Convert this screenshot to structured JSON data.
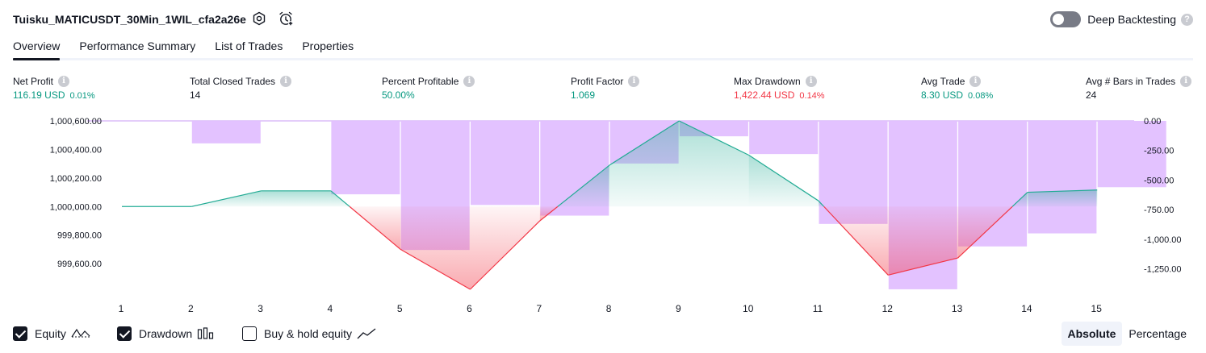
{
  "header": {
    "title": "Tuisku_MATICUSDT_30Min_1WIL_cfa2a26e",
    "settings_icon": "gear-icon",
    "alert_icon": "alarm-clock-plus-icon",
    "deep_backtesting_label": "Deep Backtesting",
    "deep_backtesting_enabled": false,
    "help_glyph": "?"
  },
  "tabs": [
    {
      "label": "Overview",
      "active": true
    },
    {
      "label": "Performance Summary",
      "active": false
    },
    {
      "label": "List of Trades",
      "active": false
    },
    {
      "label": "Properties",
      "active": false
    }
  ],
  "metrics": [
    {
      "label": "Net Profit",
      "value": "116.19 USD",
      "pct": "0.01%",
      "color": "#089981"
    },
    {
      "label": "Total Closed Trades",
      "value": "14",
      "pct": "",
      "color": "#131722"
    },
    {
      "label": "Percent Profitable",
      "value": "50.00%",
      "pct": "",
      "color": "#089981"
    },
    {
      "label": "Profit Factor",
      "value": "1.069",
      "pct": "",
      "color": "#089981"
    },
    {
      "label": "Max Drawdown",
      "value": "1,422.44 USD",
      "pct": "0.14%",
      "color": "#f23645"
    },
    {
      "label": "Avg Trade",
      "value": "8.30 USD",
      "pct": "0.08%",
      "color": "#089981"
    },
    {
      "label": "Avg # Bars in Trades",
      "value": "24",
      "pct": "",
      "color": "#131722"
    }
  ],
  "info_glyph": "i",
  "chart_data": {
    "type": "line",
    "x": [
      1,
      2,
      3,
      4,
      5,
      6,
      7,
      8,
      9,
      10,
      11,
      12,
      13,
      14,
      15
    ],
    "series": [
      {
        "name": "Equity",
        "axis": "left",
        "values": [
          1000000,
          1000000,
          1000110,
          1000110,
          999700,
          999420,
          999900,
          1000290,
          1000600,
          1000360,
          1000040,
          999520,
          999640,
          1000100,
          1000116
        ]
      },
      {
        "name": "Drawdown",
        "axis": "right",
        "chart_type": "bar",
        "values": [
          0,
          -190,
          0,
          -620,
          -1090,
          -710,
          -800,
          -360,
          -130,
          -280,
          -870,
          -1422,
          -1060,
          -950,
          -560
        ]
      }
    ],
    "left_axis": {
      "min": 999420,
      "max": 1000600,
      "ticks": [
        "1,000,600.00",
        "1,000,400.00",
        "1,000,200.00",
        "1,000,000.00",
        "999,800.00",
        "999,600.00"
      ],
      "tick_values": [
        1000600,
        1000400,
        1000200,
        1000000,
        999800,
        999600
      ]
    },
    "right_axis": {
      "min": -1422.44,
      "max": 0,
      "ticks": [
        "0.00",
        "-250.00",
        "-500.00",
        "-750.00",
        "-1,000.00",
        "-1,250.00"
      ],
      "tick_values": [
        0,
        -250,
        -500,
        -750,
        -1000,
        -1250
      ]
    },
    "baseline_value": 1000000,
    "colors": {
      "equity_up": "#22ab94",
      "equity_down": "#f23645",
      "drawdown_bar": "#e1bfff",
      "drawdown_edge": "#c89bf5"
    },
    "grid": false
  },
  "footer": {
    "options": [
      {
        "label": "Equity",
        "checked": true,
        "icon": "equity-line-icon"
      },
      {
        "label": "Drawdown",
        "checked": true,
        "icon": "drawdown-bars-icon"
      },
      {
        "label": "Buy & hold equity",
        "checked": false,
        "icon": "buy-hold-line-icon"
      }
    ],
    "scale": {
      "absolute_label": "Absolute",
      "percentage_label": "Percentage",
      "active": "Absolute"
    }
  }
}
